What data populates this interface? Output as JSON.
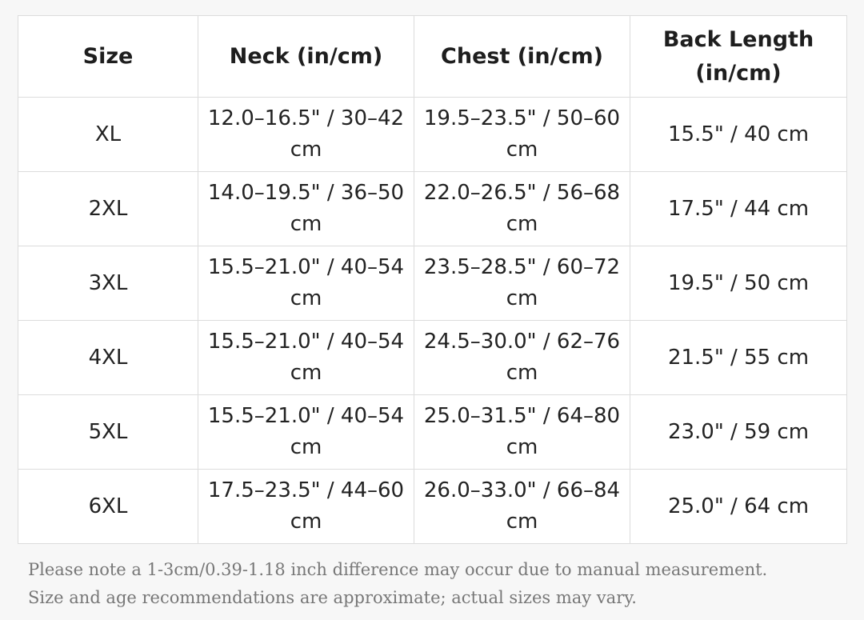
{
  "table": {
    "headers": [
      "Size",
      "Neck (in/cm)",
      "Chest (in/cm)",
      "Back Length (in/cm)"
    ],
    "rows": [
      [
        "XL",
        "12.0–16.5\" / 30–42 cm",
        "19.5–23.5\" / 50–60 cm",
        "15.5\" / 40 cm"
      ],
      [
        "2XL",
        "14.0–19.5\" / 36–50 cm",
        "22.0–26.5\" / 56–68 cm",
        "17.5\" / 44 cm"
      ],
      [
        "3XL",
        "15.5–21.0\" / 40–54 cm",
        "23.5–28.5\" / 60–72 cm",
        "19.5\" / 50 cm"
      ],
      [
        "4XL",
        "15.5–21.0\" / 40–54 cm",
        "24.5–30.0\" / 62–76 cm",
        "21.5\" / 55 cm"
      ],
      [
        "5XL",
        "15.5–21.0\" / 40–54 cm",
        "25.0–31.5\" / 64–80 cm",
        "23.0\" / 59 cm"
      ],
      [
        "6XL",
        "17.5–23.5\" / 44–60 cm",
        "26.0–33.0\" / 66–84 cm",
        "25.0\" / 64 cm"
      ]
    ]
  },
  "note": {
    "line1": "Please note a 1-3cm/0.39-1.18 inch difference may occur due to manual measurement.",
    "line2": "Size and age recommendations are approximate; actual sizes may vary."
  }
}
